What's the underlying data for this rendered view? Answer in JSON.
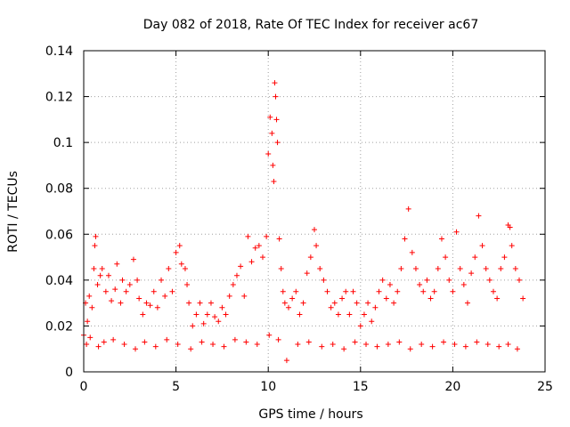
{
  "chart_data": {
    "type": "scatter",
    "title": "Day 082 of 2018, Rate Of TEC Index for receiver ac67",
    "xlabel": "GPS time / hours",
    "ylabel": "ROTI / TECUs",
    "xlim": [
      0,
      25
    ],
    "ylim": [
      0,
      0.14
    ],
    "xticks": [
      0,
      5,
      10,
      15,
      20,
      25
    ],
    "xtick_labels": [
      "0",
      "5",
      "10",
      "15",
      "20",
      "25"
    ],
    "yticks": [
      0,
      0.02,
      0.04,
      0.06,
      0.08,
      0.1,
      0.12,
      0.14
    ],
    "ytick_labels": [
      "0",
      "0.02",
      "0.04",
      "0.06",
      "0.08",
      "0.1",
      "0.12",
      "0.14"
    ],
    "grid": true,
    "marker": "+",
    "color": "#ff0000",
    "series": [
      {
        "name": "ROTI",
        "x": [
          0.0,
          0.1,
          0.2,
          0.3,
          0.45,
          0.55,
          0.6,
          0.65,
          0.75,
          0.9,
          1.0,
          1.2,
          1.35,
          1.5,
          1.7,
          1.8,
          2.0,
          2.1,
          2.3,
          2.5,
          2.7,
          2.9,
          3.0,
          3.2,
          3.4,
          3.6,
          3.8,
          4.0,
          4.2,
          4.4,
          4.6,
          4.8,
          5.0,
          5.2,
          5.3,
          5.5,
          5.6,
          5.7,
          5.9,
          6.1,
          6.3,
          6.5,
          6.7,
          6.9,
          7.1,
          7.3,
          7.5,
          7.7,
          7.9,
          8.1,
          8.3,
          8.5,
          8.7,
          8.9,
          9.1,
          9.3,
          9.5,
          9.7,
          9.9,
          10.0,
          10.1,
          10.2,
          10.25,
          10.3,
          10.35,
          10.4,
          10.45,
          10.5,
          10.6,
          10.7,
          10.8,
          10.9,
          11.1,
          11.3,
          11.5,
          11.7,
          11.9,
          12.1,
          12.3,
          12.5,
          12.6,
          12.8,
          13.0,
          13.2,
          13.4,
          13.6,
          13.8,
          14.0,
          14.2,
          14.4,
          14.6,
          14.8,
          15.0,
          15.2,
          15.4,
          15.6,
          15.8,
          16.0,
          16.2,
          16.4,
          16.6,
          16.8,
          17.0,
          17.2,
          17.4,
          17.6,
          17.8,
          18.0,
          18.2,
          18.4,
          18.6,
          18.8,
          19.0,
          19.2,
          19.4,
          19.6,
          19.8,
          20.0,
          20.2,
          20.4,
          20.6,
          20.8,
          21.0,
          21.2,
          21.4,
          21.6,
          21.8,
          22.0,
          22.2,
          22.4,
          22.6,
          22.8,
          23.0,
          23.1,
          23.2,
          23.4,
          23.6,
          23.8,
          0.15,
          0.35,
          0.8,
          1.1,
          1.6,
          2.2,
          2.8,
          3.3,
          3.9,
          4.5,
          5.1,
          5.8,
          6.4,
          7.0,
          7.6,
          8.2,
          8.8,
          9.4,
          10.05,
          10.55,
          11.0,
          11.6,
          12.2,
          12.9,
          13.5,
          14.1,
          14.7,
          15.3,
          15.9,
          16.5,
          17.1,
          17.7,
          18.3,
          18.9,
          19.5,
          20.1,
          20.7,
          21.3,
          21.9,
          22.5,
          23.0,
          23.5
        ],
        "y": [
          0.016,
          0.03,
          0.022,
          0.033,
          0.028,
          0.045,
          0.055,
          0.059,
          0.038,
          0.042,
          0.045,
          0.035,
          0.042,
          0.031,
          0.036,
          0.047,
          0.03,
          0.04,
          0.035,
          0.038,
          0.049,
          0.04,
          0.032,
          0.025,
          0.03,
          0.029,
          0.035,
          0.028,
          0.04,
          0.033,
          0.045,
          0.035,
          0.052,
          0.055,
          0.047,
          0.045,
          0.038,
          0.03,
          0.02,
          0.025,
          0.03,
          0.021,
          0.025,
          0.03,
          0.024,
          0.022,
          0.028,
          0.025,
          0.033,
          0.038,
          0.042,
          0.046,
          0.033,
          0.059,
          0.048,
          0.054,
          0.055,
          0.05,
          0.059,
          0.095,
          0.111,
          0.104,
          0.09,
          0.083,
          0.126,
          0.12,
          0.11,
          0.1,
          0.058,
          0.045,
          0.035,
          0.03,
          0.028,
          0.032,
          0.035,
          0.025,
          0.03,
          0.043,
          0.05,
          0.062,
          0.055,
          0.045,
          0.04,
          0.035,
          0.028,
          0.03,
          0.025,
          0.032,
          0.035,
          0.025,
          0.035,
          0.03,
          0.02,
          0.025,
          0.03,
          0.022,
          0.028,
          0.035,
          0.04,
          0.032,
          0.038,
          0.03,
          0.035,
          0.045,
          0.058,
          0.071,
          0.052,
          0.045,
          0.038,
          0.035,
          0.04,
          0.032,
          0.035,
          0.045,
          0.058,
          0.05,
          0.04,
          0.035,
          0.061,
          0.045,
          0.038,
          0.03,
          0.043,
          0.05,
          0.068,
          0.055,
          0.045,
          0.04,
          0.035,
          0.032,
          0.045,
          0.05,
          0.064,
          0.063,
          0.055,
          0.045,
          0.04,
          0.032,
          0.012,
          0.015,
          0.011,
          0.013,
          0.014,
          0.012,
          0.01,
          0.013,
          0.011,
          0.014,
          0.012,
          0.01,
          0.013,
          0.012,
          0.011,
          0.014,
          0.013,
          0.012,
          0.016,
          0.014,
          0.005,
          0.012,
          0.013,
          0.011,
          0.012,
          0.01,
          0.013,
          0.012,
          0.011,
          0.012,
          0.013,
          0.01,
          0.012,
          0.011,
          0.013,
          0.012,
          0.011,
          0.013,
          0.012,
          0.011,
          0.012,
          0.01
        ]
      }
    ]
  }
}
